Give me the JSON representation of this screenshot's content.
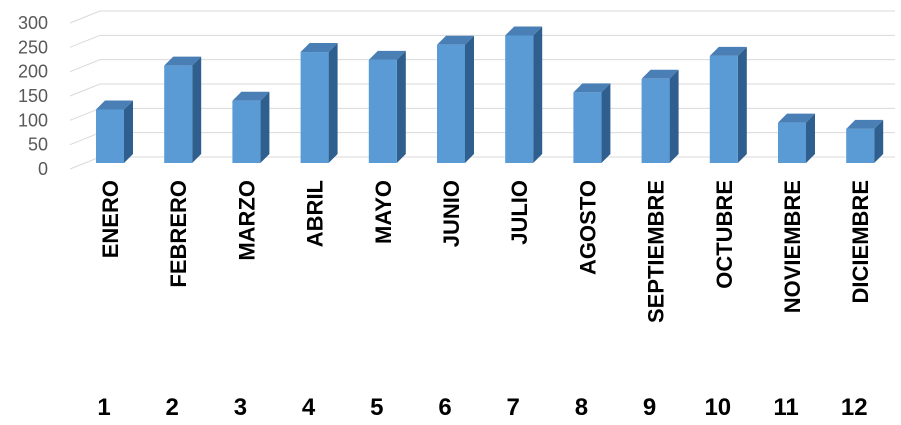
{
  "chart_data": {
    "type": "bar",
    "title": "",
    "xlabel": "",
    "ylabel": "",
    "categories": [
      "ENERO",
      "FEBRERO",
      "MARZO",
      "ABRIL",
      "MAYO",
      "JUNIO",
      "JULIO",
      "AGOSTO",
      "SEPTIEMBRE",
      "OCTUBRE",
      "NOVIEMBRE",
      "DICIEMBRE"
    ],
    "category_numbers": [
      "1",
      "2",
      "3",
      "4",
      "5",
      "6",
      "7",
      "8",
      "9",
      "10",
      "11",
      "12"
    ],
    "values": [
      110,
      200,
      128,
      228,
      212,
      243,
      262,
      145,
      173,
      220,
      83,
      70
    ],
    "ylim": [
      0,
      300
    ],
    "yticks": [
      "0",
      "50",
      "100",
      "150",
      "200",
      "250",
      "300"
    ],
    "grid": true,
    "legend": "none",
    "colors": {
      "bar_front": "#5b9bd5",
      "bar_side": "#2e5f8e",
      "bar_top": "#4a7fb5",
      "grid": "#d9d9d9"
    }
  }
}
